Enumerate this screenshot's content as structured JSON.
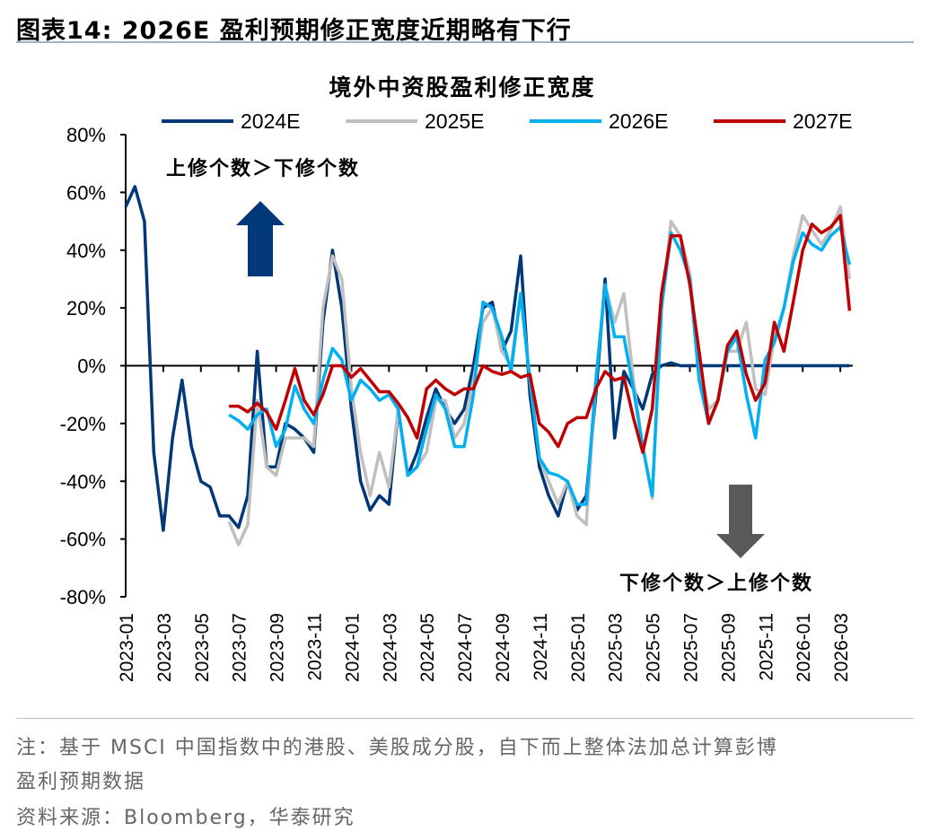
{
  "figure_title": "图表14:  2026E 盈利预期修正宽度近期略有下行",
  "note_line1": "注：基于 MSCI 中国指数中的港股、美股成分股，自下而上整体法加总计算彭博",
  "note_line2": "盈利预期数据",
  "source": "资料来源：Bloomberg，华泰研究",
  "chart_data": {
    "type": "line",
    "title": "境外中资股盈利修正宽度",
    "xlabel": "",
    "ylabel": "",
    "ylim": [
      -80,
      80
    ],
    "yticks": [
      80,
      60,
      40,
      20,
      0,
      -20,
      -40,
      -60,
      -80
    ],
    "ytick_labels": [
      "80%",
      "60%",
      "40%",
      "20%",
      "0%",
      "-20%",
      "-40%",
      "-60%",
      "-80%"
    ],
    "xtick_labels": [
      "2023-01",
      "2023-03",
      "2023-05",
      "2023-07",
      "2023-09",
      "2023-11",
      "2024-01",
      "2024-03",
      "2024-05",
      "2024-07",
      "2024-09",
      "2024-11",
      "2025-01",
      "2025-03",
      "2025-05",
      "2025-07",
      "2025-09",
      "2025-11",
      "2026-01",
      "2026-03"
    ],
    "legend_position": "top",
    "grid": false,
    "annotations": {
      "up": "上修个数＞下修个数",
      "down": "下修个数＞上修个数",
      "up_arrow_color": "#003878",
      "down_arrow_color": "#595959"
    },
    "x": [
      "2023-01-01",
      "2023-01-16",
      "2023-02-01",
      "2023-02-16",
      "2023-03-01",
      "2023-03-16",
      "2023-04-01",
      "2023-04-16",
      "2023-05-01",
      "2023-05-16",
      "2023-06-01",
      "2023-06-16",
      "2023-07-01",
      "2023-07-16",
      "2023-08-01",
      "2023-08-16",
      "2023-09-01",
      "2023-09-16",
      "2023-10-01",
      "2023-10-16",
      "2023-11-01",
      "2023-11-16",
      "2023-12-01",
      "2023-12-16",
      "2024-01-01",
      "2024-01-16",
      "2024-02-01",
      "2024-02-16",
      "2024-03-01",
      "2024-03-16",
      "2024-04-01",
      "2024-04-16",
      "2024-05-01",
      "2024-05-16",
      "2024-06-01",
      "2024-06-16",
      "2024-07-01",
      "2024-07-16",
      "2024-08-01",
      "2024-08-16",
      "2024-09-01",
      "2024-09-16",
      "2024-10-01",
      "2024-10-16",
      "2024-11-01",
      "2024-11-16",
      "2024-12-01",
      "2024-12-16",
      "2025-01-01",
      "2025-01-16",
      "2025-02-01",
      "2025-02-16",
      "2025-03-01",
      "2025-03-16",
      "2025-04-01",
      "2025-04-16",
      "2025-05-01",
      "2025-05-16",
      "2025-06-01",
      "2025-06-16",
      "2025-07-01",
      "2025-07-16",
      "2025-08-01",
      "2025-08-16",
      "2025-09-01",
      "2025-09-16",
      "2025-10-01",
      "2025-10-16",
      "2025-11-01",
      "2025-11-16",
      "2025-12-01",
      "2025-12-16",
      "2026-01-01",
      "2026-01-16",
      "2026-02-01",
      "2026-02-16",
      "2026-03-01",
      "2026-03-16"
    ],
    "series": [
      {
        "name": "2024E",
        "color": "#003878",
        "values": [
          55,
          62,
          50,
          -30,
          -57,
          -25,
          -5,
          -28,
          -40,
          -42,
          -52,
          -52,
          -56,
          -45,
          5,
          -35,
          -35,
          -20,
          -22,
          -25,
          -30,
          15,
          40,
          20,
          -15,
          -40,
          -50,
          -45,
          -48,
          -15,
          -38,
          -30,
          -18,
          -8,
          -15,
          -20,
          -15,
          0,
          20,
          22,
          5,
          12,
          38,
          -10,
          -35,
          -45,
          -52,
          -40,
          -50,
          -45,
          -10,
          30,
          -25,
          -2,
          -8,
          -15,
          -3,
          0,
          1,
          0,
          0,
          0,
          0,
          0,
          0,
          0,
          0,
          0,
          0,
          0,
          0,
          0,
          0,
          0,
          0,
          0,
          0,
          0
        ]
      },
      {
        "name": "2025E",
        "color": "#c0c0c0",
        "values": [
          null,
          null,
          null,
          null,
          null,
          null,
          null,
          null,
          null,
          null,
          null,
          -54,
          -62,
          -55,
          -12,
          -35,
          -38,
          -25,
          -25,
          -25,
          -28,
          20,
          38,
          30,
          -8,
          -30,
          -45,
          -30,
          -42,
          -15,
          -38,
          -35,
          -30,
          -12,
          -12,
          -25,
          -20,
          -5,
          15,
          20,
          5,
          0,
          25,
          -5,
          -32,
          -40,
          -48,
          -40,
          -52,
          -55,
          -5,
          28,
          15,
          25,
          -5,
          -28,
          -46,
          20,
          50,
          45,
          32,
          0,
          -15,
          -12,
          5,
          5,
          15,
          -8,
          -10,
          10,
          20,
          38,
          52,
          47,
          42,
          47,
          55,
          30
        ]
      },
      {
        "name": "2026E",
        "color": "#00b0f0",
        "values": [
          null,
          null,
          null,
          null,
          null,
          null,
          null,
          null,
          null,
          null,
          null,
          -17,
          -19,
          -22,
          -17,
          -15,
          -28,
          -22,
          -7,
          -15,
          -20,
          -5,
          6,
          2,
          -12,
          -5,
          -8,
          -12,
          -10,
          -15,
          -38,
          -35,
          -22,
          -10,
          -15,
          -28,
          -28,
          -10,
          22,
          20,
          10,
          -2,
          25,
          -5,
          -32,
          -37,
          -38,
          -40,
          -48,
          -48,
          -5,
          28,
          10,
          10,
          -8,
          -28,
          -45,
          20,
          46,
          40,
          30,
          -5,
          -20,
          -12,
          5,
          10,
          -10,
          -25,
          2,
          8,
          20,
          36,
          46,
          42,
          40,
          45,
          48,
          35
        ]
      },
      {
        "name": "2027E",
        "color": "#c00000",
        "values": [
          null,
          null,
          null,
          null,
          null,
          null,
          null,
          null,
          null,
          null,
          null,
          -14,
          -14,
          -16,
          -13,
          -16,
          -22,
          -12,
          -1,
          -12,
          -17,
          -10,
          0,
          0,
          -4,
          -1,
          -5,
          -9,
          -9,
          -13,
          -18,
          -25,
          -8,
          -5,
          -8,
          -10,
          -8,
          -8,
          0,
          -2,
          -3,
          -2,
          -4,
          -3,
          -20,
          -23,
          -28,
          -20,
          -18,
          -18,
          -8,
          -2,
          -5,
          -4,
          -18,
          -30,
          -15,
          25,
          45,
          45,
          28,
          5,
          -20,
          -12,
          7,
          12,
          -3,
          -12,
          -6,
          15,
          5,
          22,
          40,
          49,
          46,
          48,
          52,
          19
        ]
      }
    ]
  }
}
